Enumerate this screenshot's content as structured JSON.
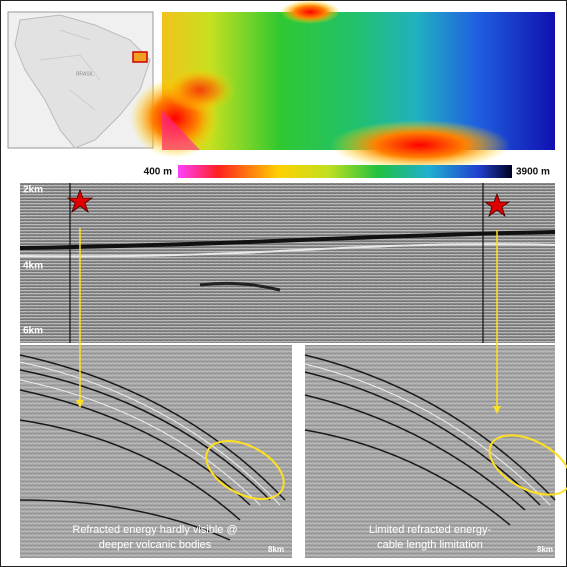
{
  "map": {
    "country": "BRASIL"
  },
  "colorbar": {
    "min_label": "400 m",
    "max_label": "3900 m"
  },
  "section": {
    "depth_labels": [
      "2km",
      "4km",
      "6km"
    ]
  },
  "panels": [
    {
      "caption_lines": [
        "Refracted energy hardly visible @",
        "deeper volcanic bodies"
      ],
      "scale": "8km"
    },
    {
      "caption_lines": [
        "Limited refracted energy-",
        "cable length limitation"
      ],
      "scale": "8km"
    }
  ]
}
